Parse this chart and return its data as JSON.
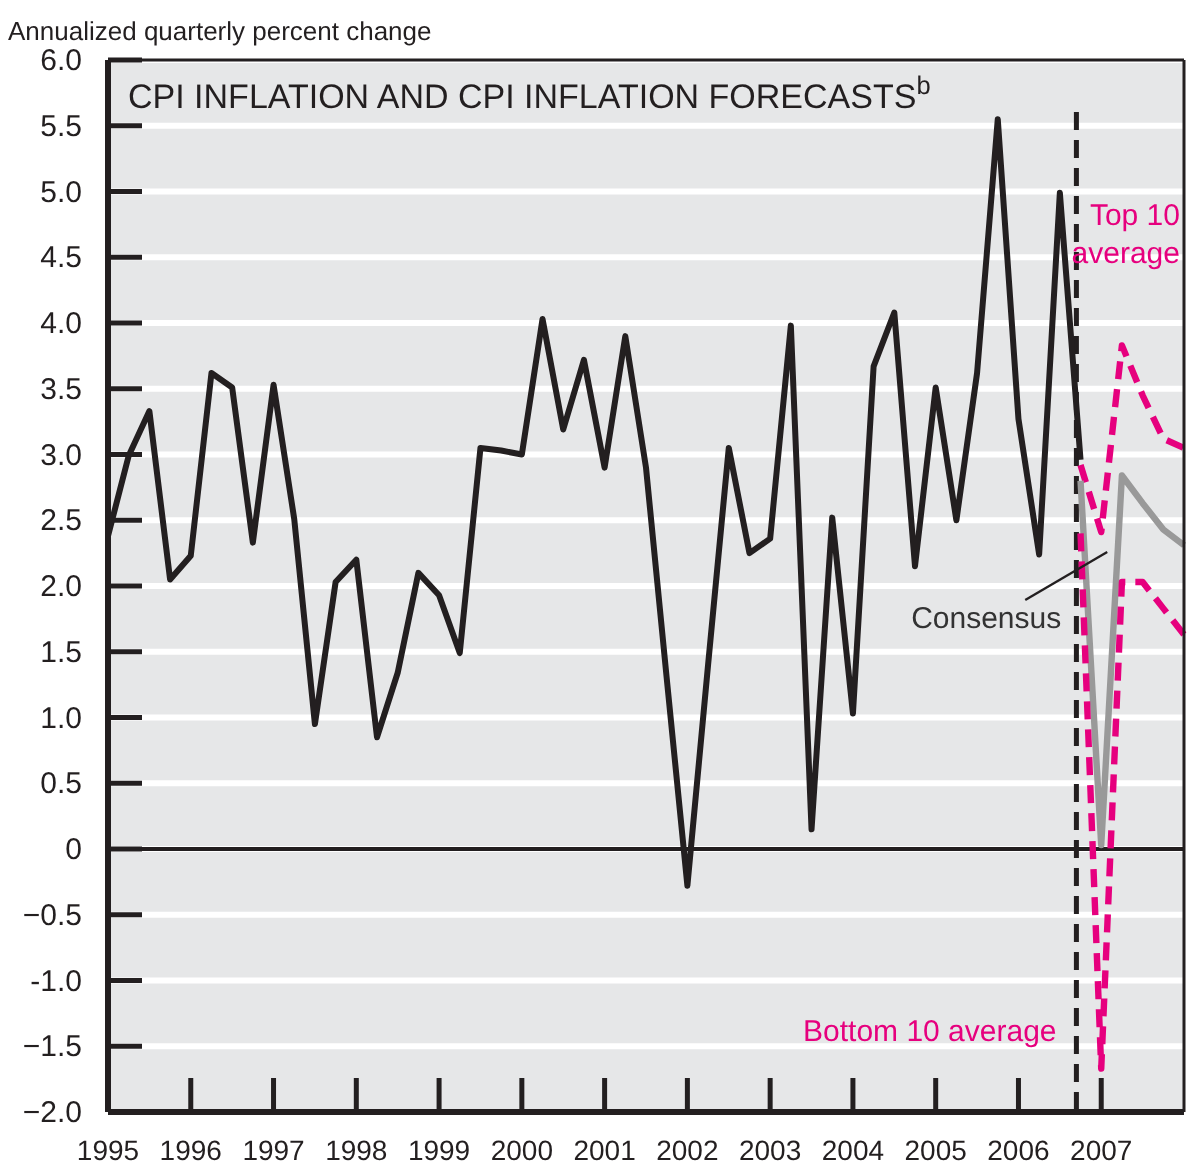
{
  "chart_data": {
    "type": "line",
    "title": "CPI INFLATION AND CPI INFLATION FORECASTS$^{b}$",
    "ylabel": "Annualized quarterly percent change",
    "xlim": [
      1995,
      2008
    ],
    "xticks": [
      1995,
      1996,
      1997,
      1998,
      1999,
      2000,
      2001,
      2002,
      2003,
      2004,
      2005,
      2006,
      2007
    ],
    "ylim": [
      -2,
      6
    ],
    "yticks": [
      {
        "value": -2,
        "label": "−2.0"
      },
      {
        "value": -1.5,
        "label": "−1.5"
      },
      {
        "value": -1,
        "label": "-1.0"
      },
      {
        "value": -0.5,
        "label": "−0.5"
      },
      0,
      {
        "value": 0.5,
        "label": "0.5"
      },
      {
        "value": 1,
        "label": "1.0"
      },
      {
        "value": 1.5,
        "label": "1.5"
      },
      {
        "value": 2,
        "label": "2.0"
      },
      {
        "value": 2.5,
        "label": "2.5"
      },
      {
        "value": 3,
        "label": "3.0"
      },
      {
        "value": 3.5,
        "label": "3.5"
      },
      {
        "value": 4,
        "label": "4.0"
      },
      {
        "value": 4.5,
        "label": "4.5"
      },
      {
        "value": 5,
        "label": "5.0"
      },
      {
        "value": 5.5,
        "label": "5.5"
      },
      {
        "value": 6,
        "label": "6.0"
      }
    ],
    "grid": "y",
    "marker": "none",
    "ref_lines": [
      {
        "axis": "x",
        "value": 2006.7,
        "color": "#231f20",
        "line_style": "dashed"
      },
      {
        "axis": "y",
        "value": 0,
        "color": "#231f20"
      }
    ],
    "series": [
      {
        "color": "#231f20",
        "line_style": "solid",
        "x": [
          1995,
          1995.25,
          1995.5,
          1995.75,
          1996,
          1996.25,
          1996.5,
          1996.75,
          1997,
          1997.25,
          1997.5,
          1997.75,
          1998,
          1998.25,
          1998.5,
          1998.75,
          1999,
          1999.25,
          1999.5,
          1999.75,
          2000,
          2000.25,
          2000.5,
          2000.75,
          2001,
          2001.25,
          2001.5,
          2001.75,
          2002,
          2002.25,
          2002.5,
          2002.75,
          2003,
          2003.25,
          2003.5,
          2003.75,
          2004,
          2004.25,
          2004.5,
          2004.75,
          2005,
          2005.25,
          2005.5,
          2005.75,
          2006,
          2006.25,
          2006.5,
          2006.75
        ],
        "values": [
          2.38,
          2.99,
          3.33,
          2.05,
          2.23,
          3.62,
          3.51,
          2.33,
          3.53,
          2.51,
          0.95,
          2.03,
          2.2,
          0.85,
          1.34,
          2.1,
          1.93,
          1.49,
          3.05,
          3.03,
          3.0,
          4.03,
          3.19,
          3.72,
          2.9,
          3.9,
          2.9,
          1.3,
          -0.28,
          1.4,
          3.05,
          2.25,
          2.36,
          3.98,
          0.15,
          2.52,
          1.03,
          3.67,
          4.08,
          2.15,
          3.51,
          2.5,
          3.62,
          5.55,
          3.27,
          2.24,
          4.99,
          2.96
        ]
      },
      {
        "name": "Top 10 average",
        "color": "#e6007e",
        "line_style": "dashed",
        "x": [
          2006.75,
          2007,
          2007.25,
          2007.5,
          2007.75,
          2008
        ],
        "values": [
          2.92,
          2.41,
          3.83,
          3.45,
          3.12,
          3.05
        ]
      },
      {
        "name": "Consensus",
        "color": "#999999",
        "line_style": "solid",
        "x": [
          2006.75,
          2007,
          2007.25,
          2007.5,
          2007.75,
          2008
        ],
        "values": [
          2.8,
          0.03,
          2.84,
          2.63,
          2.43,
          2.31
        ]
      },
      {
        "name": "Bottom 10 average",
        "color": "#e6007e",
        "line_style": "dashed",
        "x": [
          2006.75,
          2007,
          2007.25,
          2007.5,
          2007.75,
          2008
        ],
        "values": [
          2.4,
          -1.67,
          2.03,
          2.03,
          1.83,
          1.63
        ]
      }
    ]
  }
}
